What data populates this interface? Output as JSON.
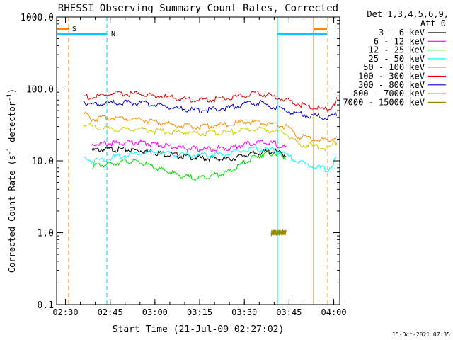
{
  "chart_data": {
    "type": "line",
    "title": "RHESSI Observing Summary Count Rates, Corrected",
    "xlabel": "Start Time (21-Jul-09 02:27:02)",
    "ylabel_main": "Corrected Count Rate (s",
    "ylabel_sup1": "-1",
    "ylabel_mid": " detector",
    "ylabel_sup2": "-1",
    "ylabel_end": ")",
    "yscale": "log",
    "ylim": [
      0.1,
      1000
    ],
    "xlim": [
      "02:27:02",
      "04:02:00"
    ],
    "x_ticks": [
      {
        "label": "02:30",
        "min": 30
      },
      {
        "label": "02:45",
        "min": 45
      },
      {
        "label": "03:00",
        "min": 60
      },
      {
        "label": "03:15",
        "min": 75
      },
      {
        "label": "03:30",
        "min": 90
      },
      {
        "label": "03:45",
        "min": 105
      },
      {
        "label": "04:00",
        "min": 120
      }
    ],
    "y_ticks": [
      {
        "label": "0.1",
        "value": 0.1
      },
      {
        "label": "1.0",
        "value": 1
      },
      {
        "label": "10.0",
        "value": 10
      },
      {
        "label": "100.0",
        "value": 100
      },
      {
        "label": "1000.0",
        "value": 1000
      }
    ],
    "legend_title_1": "Det 1,3,4,5,6,9,",
    "legend_title_2": "Att 0",
    "legend_position": "right",
    "series": [
      {
        "name": "3 - 6 keV",
        "color": "#000000",
        "x": [
          39,
          45,
          55,
          60,
          70,
          75,
          85,
          90,
          95,
          100,
          104
        ],
        "y": [
          14,
          14.5,
          14,
          13,
          11.5,
          11,
          10.5,
          12,
          13,
          13.5,
          12
        ]
      },
      {
        "name": "6 - 12 keV",
        "color": "#ff00ff",
        "x": [
          39,
          45,
          55,
          60,
          70,
          75,
          85,
          90,
          95,
          100,
          104
        ],
        "y": [
          17,
          17.5,
          18,
          17,
          15,
          14.5,
          15,
          17,
          18,
          17.5,
          15
        ]
      },
      {
        "name": "12 - 25 keV",
        "color": "#00dd00",
        "x": [
          39,
          45,
          50,
          55,
          60,
          70,
          75,
          85,
          90,
          95,
          100,
          104
        ],
        "y": [
          8.5,
          9,
          10,
          9.5,
          8,
          6,
          5.8,
          7,
          9.5,
          12,
          13,
          11
        ]
      },
      {
        "name": "25 - 50 keV",
        "color": "#00ffff",
        "x": [
          36,
          39,
          45,
          55,
          60,
          70,
          75,
          85,
          90,
          95,
          100,
          104,
          110,
          118,
          121
        ],
        "y": [
          11,
          10,
          11,
          13,
          13,
          12,
          12,
          12.5,
          14,
          14.5,
          14,
          12,
          9,
          7.5,
          11
        ]
      },
      {
        "name": "50 - 100 keV",
        "color": "#cccc00",
        "x": [
          36,
          45,
          55,
          60,
          70,
          75,
          85,
          90,
          95,
          100,
          104,
          108,
          118,
          121
        ],
        "y": [
          32,
          27,
          28,
          26,
          25,
          24,
          25,
          27,
          28,
          26,
          24,
          17,
          15,
          18
        ]
      },
      {
        "name": "100 - 300 keV",
        "color": "#dd0000",
        "x": [
          36,
          39,
          45,
          55,
          60,
          70,
          75,
          85,
          90,
          95,
          100,
          104,
          108,
          118,
          121
        ],
        "y": [
          80,
          75,
          85,
          85,
          80,
          72,
          70,
          75,
          82,
          86,
          78,
          70,
          62,
          50,
          70
        ]
      },
      {
        "name": "300 - 800 keV",
        "color": "#0000dd",
        "x": [
          36,
          39,
          45,
          55,
          60,
          70,
          75,
          85,
          90,
          95,
          100,
          104,
          108,
          118,
          121
        ],
        "y": [
          68,
          60,
          64,
          64,
          60,
          52,
          50,
          55,
          62,
          64,
          56,
          50,
          45,
          40,
          45
        ]
      },
      {
        "name": "800 - 7000 keV",
        "color": "#ff8800",
        "x": [
          36,
          39,
          45,
          55,
          60,
          70,
          75,
          85,
          90,
          95,
          100,
          104,
          108,
          118,
          121
        ],
        "y": [
          46,
          38,
          40,
          38,
          35,
          30,
          30,
          32,
          35,
          34,
          32,
          30,
          22,
          19,
          22
        ]
      },
      {
        "name": "7000 - 15000 keV",
        "color": "#998800",
        "x": [
          99,
          104
        ],
        "y": [
          1,
          1
        ]
      }
    ]
  },
  "annotations": {
    "s_label": "S",
    "n_label": "N"
  },
  "footer_timestamp": "15-Oct-2021 07:35"
}
